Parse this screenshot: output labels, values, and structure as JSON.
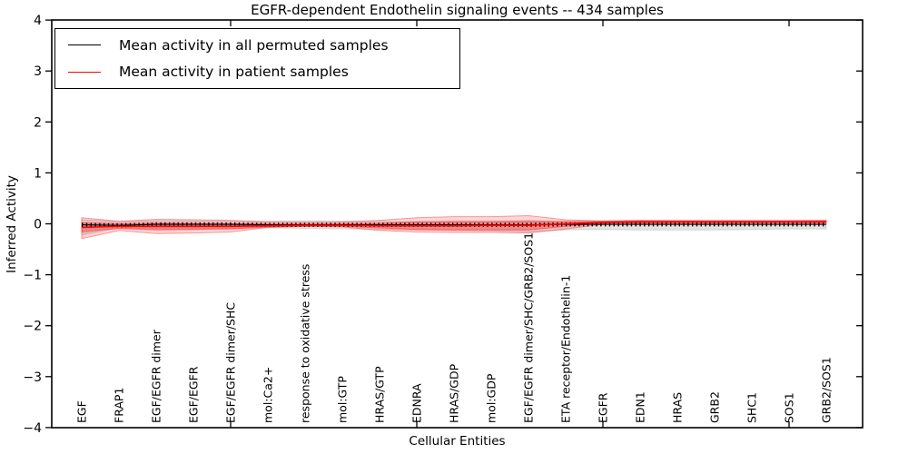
{
  "chart_data": {
    "type": "line",
    "title": "EGFR-dependent Endothelin signaling events -- 434 samples",
    "xlabel": "Cellular Entities",
    "ylabel": "Inferred Activity",
    "ylim": [
      -4,
      4
    ],
    "yticks": [
      4,
      3,
      2,
      1,
      0,
      -1,
      -2,
      -3,
      -4
    ],
    "xticks_major_indices": [
      4,
      9,
      14,
      19
    ],
    "grid": false,
    "legend_position": "upper left",
    "categories": [
      "EGF",
      "FRAP1",
      "EGF/EGFR dimer",
      "EGF/EGFR",
      "EGF/EGFR dimer/SHC",
      "mol:Ca2+",
      "response to oxidative stress",
      "mol:GTP",
      "HRAS/GTP",
      "EDNRA",
      "HRAS/GDP",
      "mol:GDP",
      "EGF/EGFR dimer/SHC/GRB2/SOS1",
      "ETA receptor/Endothelin-1",
      "EGFR",
      "EDN1",
      "HRAS",
      "GRB2",
      "SHC1",
      "SOS1",
      "GRB2/SOS1"
    ],
    "series": [
      {
        "name": "Mean activity in all permuted samples",
        "color": "#000000",
        "marker": "tick",
        "values": [
          -0.02,
          -0.03,
          -0.01,
          -0.01,
          -0.01,
          -0.02,
          -0.02,
          -0.02,
          -0.02,
          -0.02,
          -0.02,
          -0.02,
          -0.02,
          -0.01,
          -0.01,
          -0.01,
          -0.01,
          -0.01,
          -0.01,
          -0.01,
          -0.01
        ]
      },
      {
        "name": "Mean activity in patient samples",
        "color": "#ff0000",
        "marker": "none",
        "values": [
          -0.07,
          -0.05,
          -0.05,
          -0.05,
          -0.05,
          -0.04,
          -0.03,
          -0.03,
          -0.04,
          -0.04,
          -0.04,
          -0.03,
          -0.03,
          0.0,
          0.03,
          0.04,
          0.04,
          0.04,
          0.04,
          0.04,
          0.04
        ]
      }
    ],
    "bands": [
      {
        "name": "permuted-samples-range",
        "fill": "#cccccc",
        "opacity": 0.55,
        "edge": "#bdbdbd",
        "upper": [
          0.08,
          0.05,
          0.06,
          0.055,
          0.05,
          0.055,
          0.06,
          0.055,
          0.05,
          0.04,
          0.03,
          0.03,
          0.04,
          0.055,
          0.06,
          0.07,
          0.06,
          0.055,
          0.055,
          0.06,
          0.06
        ],
        "lower": [
          -0.22,
          -0.08,
          -0.1,
          -0.1,
          -0.09,
          -0.08,
          -0.09,
          -0.1,
          -0.11,
          -0.12,
          -0.13,
          -0.14,
          -0.16,
          -0.12,
          -0.11,
          -0.12,
          -0.12,
          -0.12,
          -0.11,
          -0.1,
          -0.1
        ]
      },
      {
        "name": "patient-samples-outer-range",
        "fill": "#ff0000",
        "opacity": 0.16,
        "edge": "#ff4d4d",
        "upper": [
          0.12,
          0.05,
          0.09,
          0.08,
          0.07,
          0.035,
          0.03,
          0.035,
          0.07,
          0.12,
          0.14,
          0.14,
          0.16,
          0.08,
          0.055,
          0.065,
          0.065,
          0.065,
          0.065,
          0.065,
          0.07
        ],
        "lower": [
          -0.29,
          -0.13,
          -0.19,
          -0.18,
          -0.16,
          -0.07,
          -0.05,
          -0.06,
          -0.13,
          -0.16,
          -0.17,
          -0.17,
          -0.18,
          -0.1,
          -0.01,
          0.0,
          0.005,
          0.005,
          0.01,
          0.01,
          0.01
        ]
      },
      {
        "name": "patient-samples-inner-range",
        "fill": "#ff0000",
        "opacity": 0.28,
        "edge": "#ff3333",
        "upper": [
          0.02,
          0.0,
          0.01,
          0.005,
          0.0,
          -0.005,
          -0.005,
          0.0,
          0.01,
          0.04,
          0.05,
          0.05,
          0.06,
          0.04,
          0.045,
          0.055,
          0.055,
          0.055,
          0.055,
          0.055,
          0.06
        ],
        "lower": [
          -0.16,
          -0.09,
          -0.12,
          -0.11,
          -0.1,
          -0.06,
          -0.05,
          -0.05,
          -0.08,
          -0.11,
          -0.12,
          -0.12,
          -0.12,
          -0.05,
          0.01,
          0.02,
          0.025,
          0.025,
          0.03,
          0.03,
          0.03
        ]
      }
    ]
  }
}
